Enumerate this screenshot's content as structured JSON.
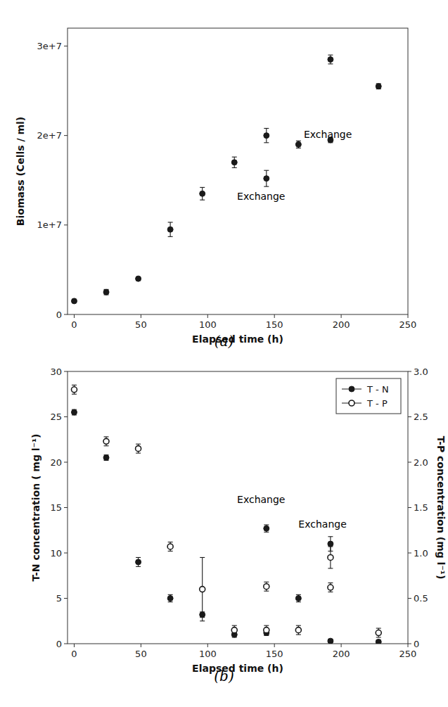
{
  "chart_data": [
    {
      "type": "scatter",
      "title": "(a)",
      "x_label": "Elapsed time (h)",
      "y_label": "Biomass (Cells / ml)",
      "x": [
        0,
        24,
        48,
        72,
        96,
        120,
        144,
        144,
        168,
        192,
        192,
        228
      ],
      "series": [
        {
          "color": "#1a1a1a",
          "marker": "circle",
          "values": [
            1500000.0,
            2500000.0,
            4000000.0,
            9500000.0,
            13500000.0,
            17000000.0,
            20000000.0,
            15200000.0,
            19000000.0,
            28500000.0,
            19500000.0,
            25500000.0
          ],
          "yerr": [
            200000.0,
            300000.0,
            200000.0,
            800000.0,
            700000.0,
            600000.0,
            800000.0,
            900000.0,
            400000.0,
            500000.0,
            300000.0,
            300000.0
          ]
        }
      ],
      "xlim": [
        -5,
        250
      ],
      "ylim": [
        0,
        32000000.0
      ],
      "xticks": [
        0,
        50,
        100,
        150,
        200,
        250
      ],
      "yticks": [
        0,
        {
          "value": 10000000.0,
          "label": "1e+7"
        },
        {
          "value": 20000000.0,
          "label": "2e+7"
        },
        {
          "value": 30000000.0,
          "label": "3e+7"
        }
      ],
      "grid": false,
      "annotations": [
        {
          "text": "Exchange",
          "x": 122,
          "y": 12800000.0
        },
        {
          "text": "Exchange",
          "x": 172,
          "y": 19700000.0
        }
      ]
    },
    {
      "type": "scatter",
      "title": "(b)",
      "x_label": "Elapsed time (h)",
      "y_label": "T-N concentration ( mg l⁻¹)",
      "y2_label": "T-P concentration (mg l⁻¹)",
      "x": [
        0,
        24,
        48,
        72,
        96,
        120,
        144,
        144,
        168,
        192,
        192,
        228
      ],
      "series": [
        {
          "name": "T - N",
          "color": "#1a1a1a",
          "marker": "circle",
          "values": [
            25.5,
            20.5,
            9.0,
            5.0,
            3.2,
            1.0,
            12.7,
            1.2,
            5.0,
            11.0,
            0.3,
            0.2
          ],
          "yerr": [
            0.3,
            0.3,
            0.5,
            0.4,
            0.3,
            0.3,
            0.4,
            0.3,
            0.4,
            0.8,
            0.2,
            0.2
          ]
        },
        {
          "name": "T - P",
          "color": "#1a1a1a",
          "marker": "open-circle",
          "axis": "y2",
          "values": [
            2.8,
            2.23,
            2.15,
            1.07,
            0.6,
            0.15,
            0.63,
            0.15,
            0.15,
            0.95,
            0.62,
            0.12
          ],
          "yerr": [
            0.05,
            0.05,
            0.05,
            0.05,
            0.35,
            0.05,
            0.05,
            0.05,
            0.05,
            0.12,
            0.05,
            0.05
          ]
        }
      ],
      "xlim": [
        -5,
        250
      ],
      "ylim": [
        0,
        30
      ],
      "y2lim": [
        0,
        3
      ],
      "xticks": [
        0,
        50,
        100,
        150,
        200,
        250
      ],
      "yticks": [
        0,
        5,
        10,
        15,
        20,
        25,
        30
      ],
      "y2ticks": [
        0,
        0.5,
        {
          "value": 1,
          "label": "1.0"
        },
        1.5,
        {
          "value": 2,
          "label": "2.0"
        },
        2.5,
        {
          "value": 3,
          "label": "3.0"
        }
      ],
      "grid": false,
      "legend": "upper-right",
      "annotations": [
        {
          "text": "Exchange",
          "x": 122,
          "y": 15.5
        },
        {
          "text": "Exchange",
          "x": 168,
          "y": 12.8
        }
      ]
    }
  ]
}
